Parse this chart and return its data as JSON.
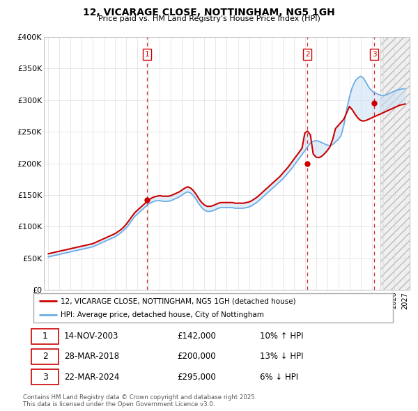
{
  "title": "12, VICARAGE CLOSE, NOTTINGHAM, NG5 1GH",
  "subtitle": "Price paid vs. HM Land Registry's House Price Index (HPI)",
  "legend_line1": "12, VICARAGE CLOSE, NOTTINGHAM, NG5 1GH (detached house)",
  "legend_line2": "HPI: Average price, detached house, City of Nottingham",
  "footer": "Contains HM Land Registry data © Crown copyright and database right 2025.\nThis data is licensed under the Open Government Licence v3.0.",
  "transactions": [
    {
      "num": 1,
      "date": "14-NOV-2003",
      "price": 142000,
      "pct": "10%",
      "dir": "↑"
    },
    {
      "num": 2,
      "date": "28-MAR-2018",
      "price": 200000,
      "pct": "13%",
      "dir": "↓"
    },
    {
      "num": 3,
      "date": "22-MAR-2024",
      "price": 295000,
      "pct": "6%",
      "dir": "↓"
    }
  ],
  "transaction_years": [
    2003.87,
    2018.24,
    2024.22
  ],
  "ylim": [
    0,
    400000
  ],
  "yticks": [
    0,
    50000,
    100000,
    150000,
    200000,
    250000,
    300000,
    350000,
    400000
  ],
  "ytick_labels": [
    "£0",
    "£50K",
    "£100K",
    "£150K",
    "£200K",
    "£250K",
    "£300K",
    "£350K",
    "£400K"
  ],
  "xlim_start": 1994.6,
  "xlim_end": 2027.4,
  "red_color": "#cc0000",
  "blue_fill_color": "#c5dff5",
  "blue_line_color": "#6aace6",
  "grid_color": "#dddddd",
  "hatch_start": 2024.75,
  "hpi_years": [
    1995.0,
    1995.25,
    1995.5,
    1995.75,
    1996.0,
    1996.25,
    1996.5,
    1996.75,
    1997.0,
    1997.25,
    1997.5,
    1997.75,
    1998.0,
    1998.25,
    1998.5,
    1998.75,
    1999.0,
    1999.25,
    1999.5,
    1999.75,
    2000.0,
    2000.25,
    2000.5,
    2000.75,
    2001.0,
    2001.25,
    2001.5,
    2001.75,
    2002.0,
    2002.25,
    2002.5,
    2002.75,
    2003.0,
    2003.25,
    2003.5,
    2003.75,
    2004.0,
    2004.25,
    2004.5,
    2004.75,
    2005.0,
    2005.25,
    2005.5,
    2005.75,
    2006.0,
    2006.25,
    2006.5,
    2006.75,
    2007.0,
    2007.25,
    2007.5,
    2007.75,
    2008.0,
    2008.25,
    2008.5,
    2008.75,
    2009.0,
    2009.25,
    2009.5,
    2009.75,
    2010.0,
    2010.25,
    2010.5,
    2010.75,
    2011.0,
    2011.25,
    2011.5,
    2011.75,
    2012.0,
    2012.25,
    2012.5,
    2012.75,
    2013.0,
    2013.25,
    2013.5,
    2013.75,
    2014.0,
    2014.25,
    2014.5,
    2014.75,
    2015.0,
    2015.25,
    2015.5,
    2015.75,
    2016.0,
    2016.25,
    2016.5,
    2016.75,
    2017.0,
    2017.25,
    2017.5,
    2017.75,
    2018.0,
    2018.25,
    2018.5,
    2018.75,
    2019.0,
    2019.25,
    2019.5,
    2019.75,
    2020.0,
    2020.25,
    2020.5,
    2020.75,
    2021.0,
    2021.25,
    2021.5,
    2021.75,
    2022.0,
    2022.25,
    2022.5,
    2022.75,
    2023.0,
    2023.25,
    2023.5,
    2023.75,
    2024.0,
    2024.25,
    2024.5,
    2024.75,
    2025.0,
    2025.25,
    2025.5,
    2025.75,
    2026.0,
    2026.25,
    2026.5,
    2026.75,
    2027.0
  ],
  "hpi_values": [
    52000,
    53000,
    54000,
    55000,
    56000,
    57000,
    58000,
    59000,
    60000,
    61000,
    62000,
    63000,
    64000,
    65000,
    66000,
    67000,
    68000,
    70000,
    72000,
    74000,
    76000,
    78000,
    80000,
    82000,
    84000,
    87000,
    90000,
    94000,
    98000,
    104000,
    110000,
    116000,
    120000,
    124000,
    128000,
    132000,
    136000,
    138000,
    140000,
    141000,
    141000,
    140000,
    140000,
    140000,
    141000,
    143000,
    145000,
    147000,
    150000,
    153000,
    155000,
    153000,
    149000,
    143000,
    136000,
    130000,
    126000,
    124000,
    124000,
    125000,
    127000,
    129000,
    130000,
    130000,
    130000,
    130000,
    130000,
    129000,
    129000,
    129000,
    129000,
    130000,
    131000,
    133000,
    136000,
    139000,
    143000,
    147000,
    151000,
    155000,
    159000,
    163000,
    167000,
    171000,
    175000,
    180000,
    185000,
    190000,
    196000,
    202000,
    208000,
    214000,
    220000,
    226000,
    232000,
    235000,
    236000,
    235000,
    233000,
    231000,
    229000,
    228000,
    230000,
    234000,
    238000,
    244000,
    260000,
    285000,
    305000,
    320000,
    330000,
    335000,
    338000,
    335000,
    328000,
    320000,
    315000,
    312000,
    310000,
    308000,
    307000,
    308000,
    310000,
    312000,
    314000,
    316000,
    317000,
    318000,
    318000
  ],
  "price_values": [
    57000,
    58000,
    59000,
    60000,
    61000,
    62000,
    63000,
    64000,
    65000,
    66000,
    67000,
    68000,
    69000,
    70000,
    71000,
    72000,
    73000,
    75000,
    77000,
    79000,
    81000,
    83000,
    85000,
    87000,
    89000,
    92000,
    95000,
    99000,
    104000,
    110000,
    116000,
    122000,
    126000,
    130000,
    134000,
    138000,
    142000,
    145000,
    147000,
    148000,
    149000,
    148000,
    148000,
    148000,
    149000,
    151000,
    153000,
    155000,
    158000,
    161000,
    163000,
    161000,
    157000,
    151000,
    144000,
    138000,
    134000,
    132000,
    132000,
    133000,
    135000,
    137000,
    138000,
    138000,
    138000,
    138000,
    138000,
    137000,
    137000,
    137000,
    137000,
    138000,
    139000,
    141000,
    144000,
    147000,
    151000,
    155000,
    159000,
    163000,
    167000,
    171000,
    175000,
    179000,
    184000,
    189000,
    194000,
    200000,
    206000,
    212000,
    218000,
    224000,
    248000,
    251000,
    245000,
    215000,
    210000,
    209000,
    211000,
    215000,
    220000,
    226000,
    238000,
    255000,
    260000,
    265000,
    270000,
    280000,
    290000,
    285000,
    278000,
    272000,
    268000,
    267000,
    268000,
    270000,
    272000,
    274000,
    276000,
    278000,
    280000,
    282000,
    284000,
    286000,
    288000,
    290000,
    292000,
    293000,
    294000
  ]
}
